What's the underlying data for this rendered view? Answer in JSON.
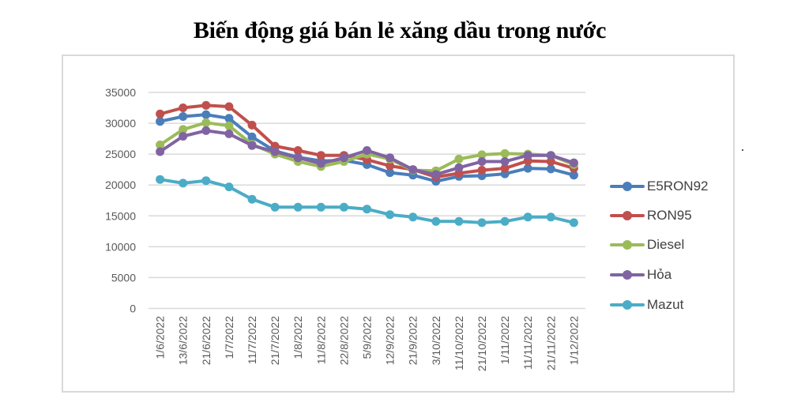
{
  "chart_data": {
    "type": "line",
    "title": "Biến động giá bán lẻ xăng dầu trong nước",
    "xlabel": "",
    "ylabel": "",
    "ylim": [
      0,
      35000
    ],
    "yticks": [
      0,
      5000,
      10000,
      15000,
      20000,
      25000,
      30000,
      35000
    ],
    "grid": true,
    "legend_position": "right",
    "categories": [
      "1/6/2022",
      "13/6/2022",
      "21/6/2022",
      "1/7/2022",
      "11/7/2022",
      "21/7/2022",
      "1/8/2022",
      "11/8/2022",
      "22/8/2022",
      "5/9/2022",
      "12/9/2022",
      "21/9/2022",
      "3/10/2022",
      "11/10/2022",
      "21/10/2022",
      "1/11/2022",
      "11/11/2022",
      "21/11/2022",
      "1/12/2022"
    ],
    "series": [
      {
        "name": "E5RON92",
        "color": "#4a7ebb",
        "values": [
          30300,
          31100,
          31400,
          30800,
          27800,
          25500,
          24500,
          23900,
          24000,
          23300,
          22000,
          21600,
          20600,
          21400,
          21500,
          21800,
          22700,
          22600,
          21600
        ]
      },
      {
        "name": "RON95",
        "color": "#c0504d",
        "values": [
          31500,
          32500,
          32900,
          32700,
          29700,
          26300,
          25600,
          24800,
          24800,
          24100,
          23100,
          22500,
          21300,
          21900,
          22400,
          22700,
          23900,
          23800,
          22700
        ]
      },
      {
        "name": "Diesel",
        "color": "#9bbb59",
        "values": [
          26500,
          29000,
          30100,
          29600,
          26600,
          25000,
          23800,
          23000,
          23800,
          25000,
          24200,
          22400,
          22300,
          24200,
          24900,
          25100,
          25000,
          24800,
          23300
        ]
      },
      {
        "name": "Hỏa",
        "color": "#8064a2",
        "values": [
          25400,
          27900,
          28800,
          28300,
          26400,
          25400,
          24400,
          23500,
          24400,
          25600,
          24400,
          22500,
          21700,
          22800,
          23800,
          23800,
          24800,
          24800,
          23600
        ]
      },
      {
        "name": "Mazut",
        "color": "#4bacc6",
        "values": [
          20900,
          20300,
          20700,
          19700,
          17700,
          16400,
          16400,
          16400,
          16400,
          16100,
          15200,
          14800,
          14100,
          14100,
          13900,
          14100,
          14800,
          14800,
          13900
        ]
      }
    ]
  },
  "header": {
    "title": "Biến động giá bán lẻ xăng dầu trong nước"
  },
  "legend": {
    "items": [
      {
        "label": "E5RON92",
        "color": "#4a7ebb"
      },
      {
        "label": "RON95",
        "color": "#c0504d"
      },
      {
        "label": "Diesel",
        "color": "#9bbb59"
      },
      {
        "label": "Hỏa",
        "color": "#8064a2"
      },
      {
        "label": "Mazut",
        "color": "#4bacc6"
      }
    ]
  }
}
